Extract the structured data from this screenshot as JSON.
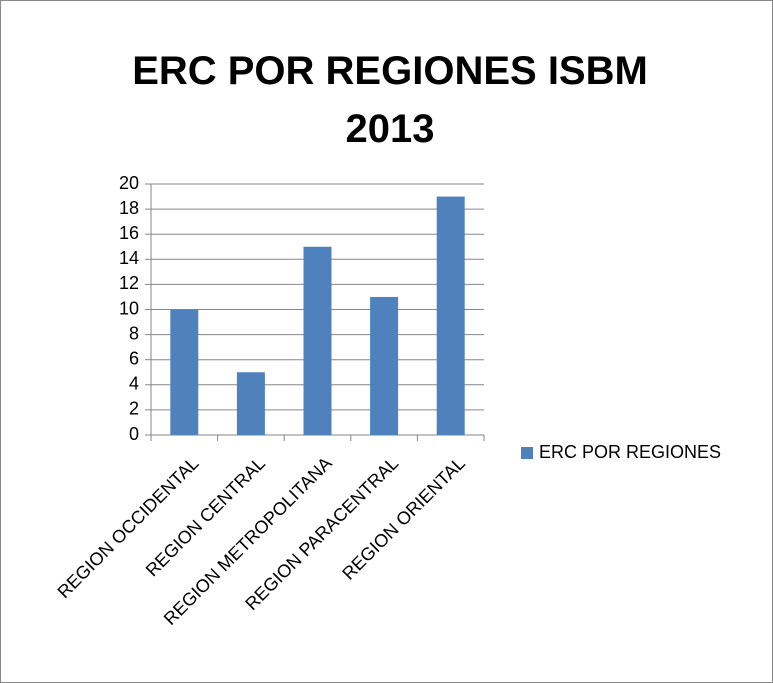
{
  "chart_data": {
    "type": "bar",
    "title": "ERC POR REGIONES ISBM 2013",
    "categories": [
      "REGION OCCIDENTAL",
      "REGION CENTRAL",
      "REGION METROPOLITANA",
      "REGION PARACENTRAL",
      "REGION ORIENTAL"
    ],
    "series": [
      {
        "name": "ERC POR REGIONES",
        "color": "#4f81bd",
        "values": [
          10,
          5,
          15,
          11,
          19
        ]
      }
    ],
    "ylim": [
      0,
      20
    ],
    "yticks": [
      0,
      2,
      4,
      6,
      8,
      10,
      12,
      14,
      16,
      18,
      20
    ],
    "grid": true,
    "legend": "right"
  }
}
